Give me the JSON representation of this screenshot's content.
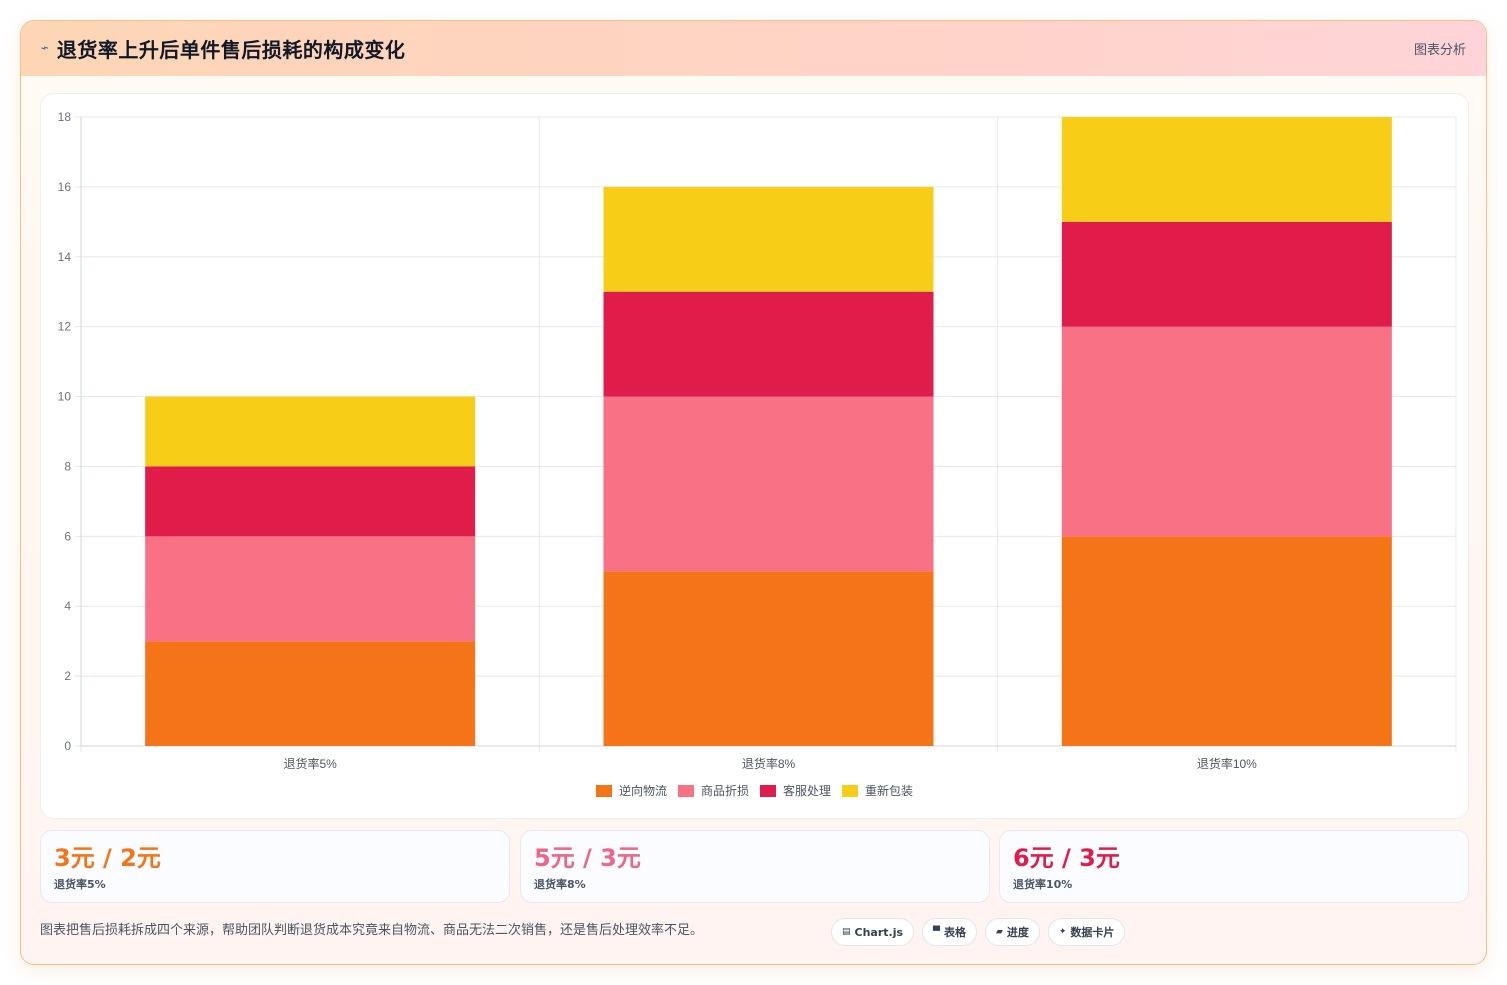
{
  "header": {
    "icon": "chart-line-icon",
    "title": "退货率上升后单件售后损耗的构成变化",
    "tag": "图表分析"
  },
  "chart_data": {
    "type": "bar",
    "stacked": true,
    "categories": [
      "退货率5%",
      "退货率8%",
      "退货率10%"
    ],
    "series": [
      {
        "name": "逆向物流",
        "color": "#f57418",
        "values": [
          3,
          5,
          6
        ]
      },
      {
        "name": "商品折损",
        "color": "#f87185",
        "values": [
          3,
          5,
          6
        ]
      },
      {
        "name": "客服处理",
        "color": "#e01c4b",
        "values": [
          2,
          3,
          3
        ]
      },
      {
        "name": "重新包装",
        "color": "#f7cd17",
        "values": [
          2,
          3,
          3
        ]
      }
    ],
    "ylim": [
      0,
      18
    ],
    "yticks": [
      0,
      2,
      4,
      6,
      8,
      10,
      12,
      14,
      16,
      18
    ],
    "grid": true,
    "legend_position": "bottom"
  },
  "stats": [
    {
      "value": "3元 / 2元",
      "label": "退货率5%",
      "color": "#f57418"
    },
    {
      "value": "5元 / 3元",
      "label": "退货率8%",
      "color": "#f06584"
    },
    {
      "value": "6元 / 3元",
      "label": "退货率10%",
      "color": "#e01c4b"
    }
  ],
  "footer": {
    "note": "图表把售后损耗拆成四个来源，帮助团队判断退货成本究竟来自物流、商品无法二次销售，还是售后处理效率不足。",
    "chips": [
      {
        "icon": "chart-icon",
        "glyph": "▤",
        "label": "Chart.js"
      },
      {
        "icon": "table-icon",
        "glyph": "▀",
        "label": "表格"
      },
      {
        "icon": "progress-icon",
        "glyph": "▰",
        "label": "进度"
      },
      {
        "icon": "sparkle-icon",
        "glyph": "✦",
        "label": "数据卡片"
      }
    ]
  }
}
